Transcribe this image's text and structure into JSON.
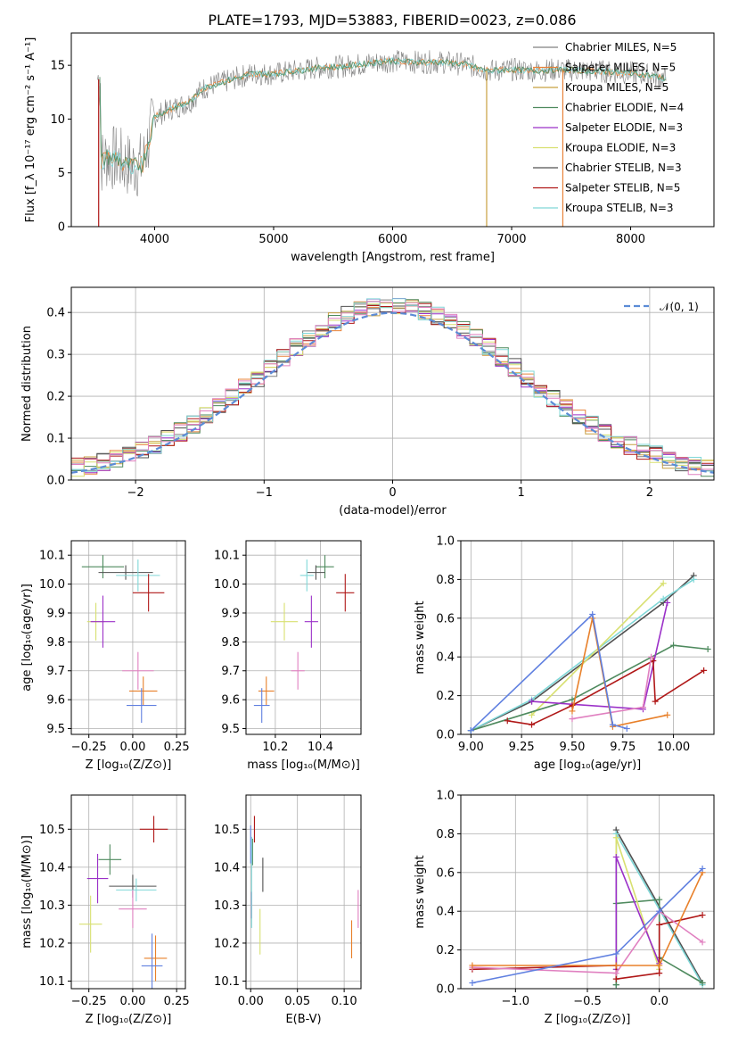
{
  "figure_title": "PLATE=1793, MJD=53883, FIBERID=0023, z=0.086",
  "colors": {
    "Chabrier MILES": "#808080",
    "Salpeter MILES": "#e8823a",
    "Kroupa MILES": "#c8a040",
    "Chabrier ELODIE": "#4e8a5e",
    "Salpeter ELODIE": "#9b30c8",
    "Kroupa ELODIE": "#d8e070",
    "Chabrier STELIB": "#505050",
    "Salpeter STELIB": "#b01818",
    "Kroupa STELIB": "#80d8d8",
    "pink": "#e080c0",
    "orange": "#e8802a",
    "blue": "#6080e0",
    "normal": "#5b8bd6"
  },
  "chart_data": [
    {
      "id": "spectrum",
      "type": "line",
      "title": "PLATE=1793, MJD=53883, FIBERID=0023, z=0.086",
      "xlabel": "wavelength [Angstrom, rest frame]",
      "ylabel": "Flux [f_λ 10⁻¹⁷ erg cm⁻² s⁻¹ A⁻¹]",
      "xlim": [
        3300,
        8700
      ],
      "ylim": [
        0,
        18
      ],
      "xticks": [
        "4000",
        "5000",
        "6000",
        "7000",
        "8000"
      ],
      "yticks": [
        "0",
        "5",
        "10",
        "15"
      ],
      "grid": false,
      "legend_position": "right",
      "legend": [
        "Chabrier MILES, N_SSP=5",
        "Salpeter MILES, N_SSP=5",
        "Kroupa MILES, N_SSP=5",
        "Chabrier ELODIE, N_SSP=4",
        "Salpeter ELODIE, N_SSP=3",
        "Kroupa ELODIE, N_SSP=3",
        "Chabrier STELIB, N_SSP=3",
        "Salpeter STELIB, N_SSP=5",
        "Kroupa STELIB, N_SSP=3"
      ],
      "continuum": {
        "x": [
          3550,
          3600,
          3700,
          3800,
          3900,
          4000,
          4100,
          4200,
          4300,
          4400,
          4500,
          4600,
          4800,
          5000,
          5200,
          5400,
          5600,
          5800,
          6000,
          6200,
          6400,
          6600,
          6800,
          7000,
          7200,
          7400,
          7600,
          7800,
          8000,
          8200,
          8300
        ],
        "y": [
          6.0,
          6.5,
          6.2,
          5.6,
          5.8,
          10.2,
          10.8,
          11.2,
          11.6,
          12.8,
          13.2,
          13.5,
          14.2,
          14.2,
          14.5,
          14.8,
          14.9,
          15.2,
          15.4,
          15.3,
          15.3,
          15.1,
          14.5,
          14.6,
          14.5,
          14.6,
          14.5,
          14.4,
          14.3,
          14.0,
          13.7
        ]
      },
      "drops": [
        {
          "x": 6790,
          "series": "Kroupa MILES"
        },
        {
          "x": 7430,
          "series": "Salpeter MILES"
        },
        {
          "x": 3530,
          "series": "Salpeter STELIB"
        }
      ]
    },
    {
      "id": "residuals",
      "type": "line",
      "xlabel": "(data-model)/error",
      "ylabel": "Normed distribution",
      "xlim": [
        -2.5,
        2.5
      ],
      "ylim": [
        0,
        0.46
      ],
      "xticks": [
        "−2",
        "−1",
        "0",
        "1",
        "2"
      ],
      "yticks": [
        "0.0",
        "0.1",
        "0.2",
        "0.3",
        "0.4"
      ],
      "grid": true,
      "legend_position": "top-right",
      "legend": [
        "𝒩(0, 1)"
      ],
      "bin_width": 0.1
    },
    {
      "id": "age_vs_Z",
      "type": "scatter",
      "xlabel": "Z [log₁₀(Z/Z⊙)]",
      "ylabel": "age [log₁₀(age/yr)]",
      "xlim": [
        -0.35,
        0.3
      ],
      "ylim": [
        9.48,
        10.15
      ],
      "xticks": [
        "−0.25",
        "0.00",
        "0.25"
      ],
      "yticks": [
        "9.5",
        "9.6",
        "9.7",
        "9.8",
        "9.9",
        "10.0",
        "10.1"
      ],
      "grid": true,
      "points": [
        {
          "c": "#4e8a5e",
          "x": -0.17,
          "y": 10.06,
          "dx": 0.24,
          "dy": 0.08
        },
        {
          "c": "#505050",
          "x": -0.04,
          "y": 10.04,
          "dx": 0.31,
          "dy": 0.05
        },
        {
          "c": "#80d8d8",
          "x": 0.03,
          "y": 10.03,
          "dx": 0.25,
          "dy": 0.11
        },
        {
          "c": "#b01818",
          "x": 0.09,
          "y": 9.97,
          "dx": 0.18,
          "dy": 0.13
        },
        {
          "c": "#d8e070",
          "x": -0.21,
          "y": 9.87,
          "dx": 0.1,
          "dy": 0.13
        },
        {
          "c": "#9b30c8",
          "x": -0.17,
          "y": 9.87,
          "dx": 0.14,
          "dy": 0.18
        },
        {
          "c": "#e080c0",
          "x": 0.03,
          "y": 9.7,
          "dx": 0.18,
          "dy": 0.13
        },
        {
          "c": "#e8802a",
          "x": 0.06,
          "y": 9.63,
          "dx": 0.16,
          "dy": 0.1
        },
        {
          "c": "#6080e0",
          "x": 0.05,
          "y": 9.58,
          "dx": 0.17,
          "dy": 0.12
        }
      ]
    },
    {
      "id": "age_vs_mass",
      "type": "scatter",
      "xlabel": "mass [log₁₀(M/M⊙)]",
      "ylabel": "",
      "xlim": [
        10.07,
        10.58
      ],
      "ylim": [
        9.48,
        10.15
      ],
      "xticks": [
        "10.2",
        "10.4"
      ],
      "yticks": [
        "9.5",
        "9.6",
        "9.7",
        "9.8",
        "9.9",
        "10.0",
        "10.1"
      ],
      "grid": true,
      "points": [
        {
          "c": "#4e8a5e",
          "x": 10.42,
          "y": 10.06,
          "dx": 0.08,
          "dy": 0.08
        },
        {
          "c": "#505050",
          "x": 10.38,
          "y": 10.04,
          "dx": 0.08,
          "dy": 0.05
        },
        {
          "c": "#80d8d8",
          "x": 10.34,
          "y": 10.03,
          "dx": 0.06,
          "dy": 0.11
        },
        {
          "c": "#b01818",
          "x": 10.51,
          "y": 9.97,
          "dx": 0.08,
          "dy": 0.13
        },
        {
          "c": "#d8e070",
          "x": 10.24,
          "y": 9.87,
          "dx": 0.12,
          "dy": 0.13
        },
        {
          "c": "#9b30c8",
          "x": 10.36,
          "y": 9.87,
          "dx": 0.06,
          "dy": 0.18
        },
        {
          "c": "#e080c0",
          "x": 10.3,
          "y": 9.7,
          "dx": 0.06,
          "dy": 0.13
        },
        {
          "c": "#e8802a",
          "x": 10.16,
          "y": 9.63,
          "dx": 0.07,
          "dy": 0.1
        },
        {
          "c": "#6080e0",
          "x": 10.14,
          "y": 9.58,
          "dx": 0.07,
          "dy": 0.12
        }
      ]
    },
    {
      "id": "weight_vs_age",
      "type": "line",
      "xlabel": "age [log₁₀(age/yr)]",
      "ylabel": "mass weight",
      "xlim": [
        8.95,
        10.2
      ],
      "ylim": [
        0,
        1.0
      ],
      "xticks": [
        "9.00",
        "9.25",
        "9.50",
        "9.75",
        "10.00"
      ],
      "yticks": [
        "0.0",
        "0.2",
        "0.4",
        "0.6",
        "0.8",
        "1.0"
      ],
      "grid": true,
      "series": [
        {
          "c": "#505050",
          "x": [
            9.0,
            9.3,
            9.95,
            10.1
          ],
          "y": [
            0.02,
            0.17,
            0.68,
            0.82
          ]
        },
        {
          "c": "#80d8d8",
          "x": [
            9.0,
            9.3,
            9.95,
            10.1
          ],
          "y": [
            0.02,
            0.18,
            0.7,
            0.8
          ]
        },
        {
          "c": "#d8e070",
          "x": [
            9.3,
            9.95
          ],
          "y": [
            0.1,
            0.78
          ]
        },
        {
          "c": "#4e8a5e",
          "x": [
            9.0,
            9.5,
            10.0,
            10.17
          ],
          "y": [
            0.02,
            0.18,
            0.46,
            0.44
          ]
        },
        {
          "c": "#9b30c8",
          "x": [
            9.3,
            9.85,
            9.97
          ],
          "y": [
            0.17,
            0.13,
            0.68
          ]
        },
        {
          "c": "#b01818",
          "x": [
            9.18,
            9.3,
            9.5,
            9.9,
            9.91,
            10.15
          ],
          "y": [
            0.07,
            0.05,
            0.15,
            0.38,
            0.17,
            0.33
          ]
        },
        {
          "c": "#e080c0",
          "x": [
            9.5,
            9.85,
            9.89
          ],
          "y": [
            0.08,
            0.14,
            0.4
          ]
        },
        {
          "c": "#e8802a",
          "x": [
            9.5,
            9.6,
            9.7,
            9.97
          ],
          "y": [
            0.12,
            0.6,
            0.04,
            0.1
          ]
        },
        {
          "c": "#6080e0",
          "x": [
            9.0,
            9.6,
            9.7,
            9.77
          ],
          "y": [
            0.02,
            0.62,
            0.05,
            0.03
          ]
        }
      ]
    },
    {
      "id": "mass_vs_Z",
      "type": "scatter",
      "xlabel": "Z [log₁₀(Z/Z⊙)]",
      "ylabel": "mass [log₁₀(M/M⊙)]",
      "xlim": [
        -0.35,
        0.3
      ],
      "ylim": [
        10.08,
        10.59
      ],
      "xticks": [
        "−0.25",
        "0.00",
        "0.25"
      ],
      "yticks": [
        "10.1",
        "10.2",
        "10.3",
        "10.4",
        "10.5"
      ],
      "grid": true,
      "points": [
        {
          "c": "#b01818",
          "x": 0.12,
          "y": 10.5,
          "dx": 0.16,
          "dy": 0.07
        },
        {
          "c": "#4e8a5e",
          "x": -0.13,
          "y": 10.42,
          "dx": 0.13,
          "dy": 0.08
        },
        {
          "c": "#9b30c8",
          "x": -0.2,
          "y": 10.37,
          "dx": 0.12,
          "dy": 0.13
        },
        {
          "c": "#505050",
          "x": 0.0,
          "y": 10.35,
          "dx": 0.27,
          "dy": 0.06
        },
        {
          "c": "#80d8d8",
          "x": 0.02,
          "y": 10.34,
          "dx": 0.23,
          "dy": 0.06
        },
        {
          "c": "#e080c0",
          "x": 0.0,
          "y": 10.29,
          "dx": 0.16,
          "dy": 0.1
        },
        {
          "c": "#d8e070",
          "x": -0.24,
          "y": 10.25,
          "dx": 0.13,
          "dy": 0.15
        },
        {
          "c": "#e8802a",
          "x": 0.13,
          "y": 10.16,
          "dx": 0.13,
          "dy": 0.12
        },
        {
          "c": "#6080e0",
          "x": 0.11,
          "y": 10.14,
          "dx": 0.12,
          "dy": 0.17
        }
      ]
    },
    {
      "id": "mass_vs_EBV",
      "type": "scatter",
      "xlabel": "E(B-V)",
      "ylabel": "",
      "xlim": [
        -0.005,
        0.118
      ],
      "ylim": [
        10.08,
        10.59
      ],
      "xticks": [
        "0.00",
        "0.05",
        "0.10"
      ],
      "yticks": [
        "10.1",
        "10.2",
        "10.3",
        "10.4",
        "10.5"
      ],
      "grid": true,
      "points": [
        {
          "c": "#b01818",
          "x": 0.004,
          "y": 10.5,
          "dx": 0,
          "dy": 0.07
        },
        {
          "c": "#4e8a5e",
          "x": 0.002,
          "y": 10.44,
          "dx": 0,
          "dy": 0.07
        },
        {
          "c": "#9b30c8",
          "x": 0.001,
          "y": 10.3,
          "dx": 0,
          "dy": 0.07
        },
        {
          "c": "#505050",
          "x": 0.013,
          "y": 10.38,
          "dx": 0,
          "dy": 0.09
        },
        {
          "c": "#80d8d8",
          "x": 0.001,
          "y": 10.36,
          "dx": 0,
          "dy": 0.24
        },
        {
          "c": "#d8e070",
          "x": 0.01,
          "y": 10.23,
          "dx": 0,
          "dy": 0.12
        },
        {
          "c": "#e080c0",
          "x": 0.115,
          "y": 10.29,
          "dx": 0,
          "dy": 0.1
        },
        {
          "c": "#e8802a",
          "x": 0.108,
          "y": 10.21,
          "dx": 0,
          "dy": 0.1
        },
        {
          "c": "#6080e0",
          "x": 0.0,
          "y": 10.46,
          "dx": 0,
          "dy": 0.1
        }
      ]
    },
    {
      "id": "weight_vs_Z",
      "type": "line",
      "xlabel": "Z [log₁₀(Z/Z⊙)]",
      "ylabel": "mass weight",
      "xlim": [
        -1.38,
        0.38
      ],
      "ylim": [
        0,
        1.0
      ],
      "xticks": [
        "−1.0",
        "−0.5",
        "0.0"
      ],
      "yticks": [
        "0.0",
        "0.2",
        "0.4",
        "0.6",
        "0.8",
        "1.0"
      ],
      "grid": true,
      "series": [
        {
          "c": "#505050",
          "x": [
            -0.3,
            -0.3,
            0.3
          ],
          "y": [
            0.02,
            0.82,
            0.03
          ]
        },
        {
          "c": "#80d8d8",
          "x": [
            -0.3,
            -0.3,
            0.3
          ],
          "y": [
            0.02,
            0.8,
            0.02
          ]
        },
        {
          "c": "#4e8a5e",
          "x": [
            -0.3,
            -0.3,
            0.0,
            0.0,
            0.3
          ],
          "y": [
            0.02,
            0.44,
            0.46,
            0.16,
            0.03
          ]
        },
        {
          "c": "#d8e070",
          "x": [
            -0.3,
            -0.3,
            0.0,
            0.0
          ],
          "y": [
            0.1,
            0.78,
            0.1,
            0.12
          ]
        },
        {
          "c": "#9b30c8",
          "x": [
            -0.3,
            -0.3,
            0.0
          ],
          "y": [
            0.1,
            0.68,
            0.13
          ]
        },
        {
          "c": "#b01818",
          "x": [
            -1.3,
            -0.3,
            -0.3,
            0.0,
            0.0,
            0.3
          ],
          "y": [
            0.1,
            0.12,
            0.05,
            0.08,
            0.33,
            0.38
          ]
        },
        {
          "c": "#e080c0",
          "x": [
            -1.3,
            -0.3,
            0.0,
            0.3
          ],
          "y": [
            0.11,
            0.08,
            0.4,
            0.24
          ]
        },
        {
          "c": "#e8802a",
          "x": [
            -1.3,
            -0.3,
            0.0,
            0.3
          ],
          "y": [
            0.12,
            0.12,
            0.12,
            0.6
          ]
        },
        {
          "c": "#6080e0",
          "x": [
            -1.3,
            -0.3,
            0.0,
            0.3
          ],
          "y": [
            0.03,
            0.18,
            0.4,
            0.62
          ]
        }
      ]
    }
  ]
}
